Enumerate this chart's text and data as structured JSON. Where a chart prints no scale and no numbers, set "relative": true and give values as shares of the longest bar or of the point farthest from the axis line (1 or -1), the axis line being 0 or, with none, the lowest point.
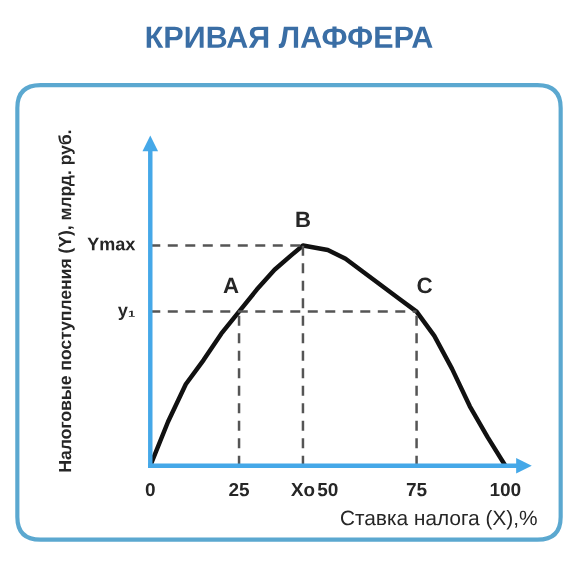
{
  "chart_data": {
    "type": "line",
    "title": "КРИВАЯ ЛАФФЕРА",
    "xlabel": "Ставка налога (X),%",
    "ylabel": "Налоговые поступления (Y), млрд. руб.",
    "relative": true,
    "x": [
      0,
      5,
      10,
      15,
      20,
      25,
      30,
      35,
      40,
      43,
      50,
      55,
      60,
      65,
      70,
      75,
      80,
      85,
      90,
      95,
      100
    ],
    "series": [
      {
        "color": "#111111",
        "values": [
          0,
          0.2,
          0.37,
          0.48,
          0.6,
          0.7,
          0.8,
          0.89,
          0.96,
          1,
          0.98,
          0.94,
          0.88,
          0.82,
          0.76,
          0.7,
          0.59,
          0.44,
          0.27,
          0.13,
          0
        ]
      }
    ],
    "xlim": [
      0,
      105
    ],
    "xticks": [
      0,
      25,
      {
        "value": 43,
        "label": "Xo"
      },
      50,
      75,
      100
    ],
    "ref_lines": [
      {
        "axis": "y",
        "value": 1,
        "label": "Ymax",
        "line_style": "dashed"
      },
      {
        "axis": "y",
        "value": 0.7,
        "label": "y₁",
        "line_style": "dashed"
      },
      {
        "axis": "x",
        "value": 25,
        "label": null,
        "line_style": "dashed"
      },
      {
        "axis": "x",
        "value": 43,
        "label": null,
        "line_style": "dashed"
      },
      {
        "axis": "x",
        "value": 75,
        "label": null,
        "line_style": "dashed"
      }
    ],
    "annotations": [
      {
        "text": "A",
        "x": 25,
        "y": 0.7
      },
      {
        "text": "B",
        "x": 43,
        "y": 1
      },
      {
        "text": "C",
        "x": 75,
        "y": 0.7
      }
    ],
    "grid": false,
    "legend": false
  }
}
